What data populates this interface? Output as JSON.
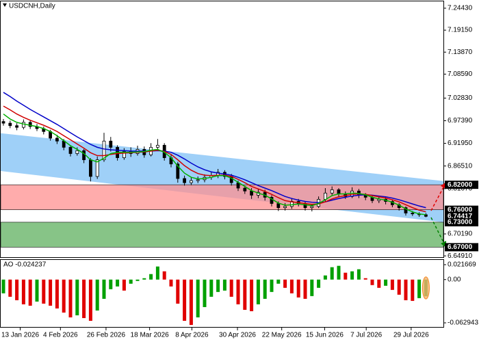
{
  "chart_data": [
    {
      "type": "candlestick",
      "title": "USDCNH,Daily",
      "ohlc": [
        [
          6.972,
          6.978,
          6.962,
          6.968
        ],
        [
          6.968,
          6.974,
          6.956,
          6.962
        ],
        [
          6.962,
          6.968,
          6.951,
          6.958
        ],
        [
          6.958,
          6.977,
          6.953,
          6.97
        ],
        [
          6.97,
          6.975,
          6.954,
          6.96
        ],
        [
          6.96,
          6.966,
          6.949,
          6.955
        ],
        [
          6.955,
          6.96,
          6.941,
          6.948
        ],
        [
          6.948,
          6.952,
          6.926,
          6.932
        ],
        [
          6.932,
          6.94,
          6.918,
          6.925
        ],
        [
          6.925,
          6.93,
          6.903,
          6.91
        ],
        [
          6.91,
          6.915,
          6.888,
          6.895
        ],
        [
          6.895,
          6.91,
          6.89,
          6.902
        ],
        [
          6.902,
          6.906,
          6.872,
          6.88
        ],
        [
          6.88,
          6.884,
          6.828,
          6.84
        ],
        [
          6.84,
          6.888,
          6.834,
          6.88
        ],
        [
          6.88,
          6.945,
          6.875,
          6.925
        ],
        [
          6.925,
          6.935,
          6.9,
          6.91
        ],
        [
          6.91,
          6.915,
          6.878,
          6.885
        ],
        [
          6.885,
          6.908,
          6.88,
          6.9
        ],
        [
          6.9,
          6.91,
          6.887,
          6.895
        ],
        [
          6.895,
          6.914,
          6.89,
          6.905
        ],
        [
          6.905,
          6.912,
          6.885,
          6.892
        ],
        [
          6.892,
          6.92,
          6.888,
          6.91
        ],
        [
          6.91,
          6.93,
          6.905,
          6.915
        ],
        [
          6.915,
          6.92,
          6.878,
          6.885
        ],
        [
          6.885,
          6.892,
          6.862,
          6.87
        ],
        [
          6.87,
          6.875,
          6.825,
          6.835
        ],
        [
          6.835,
          6.842,
          6.818,
          6.825
        ],
        [
          6.825,
          6.838,
          6.819,
          6.83
        ],
        [
          6.83,
          6.84,
          6.824,
          6.832
        ],
        [
          6.832,
          6.845,
          6.826,
          6.838
        ],
        [
          6.838,
          6.85,
          6.832,
          6.842
        ],
        [
          6.842,
          6.858,
          6.836,
          6.85
        ],
        [
          6.85,
          6.855,
          6.833,
          6.84
        ],
        [
          6.84,
          6.846,
          6.818,
          6.825
        ],
        [
          6.825,
          6.83,
          6.805,
          6.812
        ],
        [
          6.812,
          6.818,
          6.798,
          6.805
        ],
        [
          6.805,
          6.812,
          6.786,
          6.795
        ],
        [
          6.795,
          6.81,
          6.788,
          6.802
        ],
        [
          6.802,
          6.808,
          6.782,
          6.79
        ],
        [
          6.79,
          6.795,
          6.768,
          6.775
        ],
        [
          6.775,
          6.78,
          6.757,
          6.765
        ],
        [
          6.765,
          6.776,
          6.758,
          6.768
        ],
        [
          6.768,
          6.788,
          6.762,
          6.78
        ],
        [
          6.78,
          6.786,
          6.768,
          6.775
        ],
        [
          6.775,
          6.78,
          6.758,
          6.765
        ],
        [
          6.765,
          6.774,
          6.756,
          6.768
        ],
        [
          6.768,
          6.792,
          6.764,
          6.785
        ],
        [
          6.785,
          6.812,
          6.78,
          6.8
        ],
        [
          6.8,
          6.816,
          6.794,
          6.808
        ],
        [
          6.808,
          6.812,
          6.79,
          6.798
        ],
        [
          6.798,
          6.804,
          6.786,
          6.792
        ],
        [
          6.792,
          6.814,
          6.788,
          6.805
        ],
        [
          6.805,
          6.81,
          6.788,
          6.795
        ],
        [
          6.795,
          6.8,
          6.783,
          6.79
        ],
        [
          6.79,
          6.795,
          6.776,
          6.782
        ],
        [
          6.782,
          6.79,
          6.776,
          6.785
        ],
        [
          6.785,
          6.79,
          6.773,
          6.78
        ],
        [
          6.78,
          6.784,
          6.766,
          6.772
        ],
        [
          6.772,
          6.776,
          6.758,
          6.765
        ],
        [
          6.765,
          6.768,
          6.746,
          6.752
        ],
        [
          6.752,
          6.757,
          6.745,
          6.75
        ],
        [
          6.75,
          6.754,
          6.743,
          6.748
        ],
        [
          6.748,
          6.752,
          6.742,
          6.74417
        ]
      ],
      "overlays": [
        {
          "color": "#0000c8",
          "values": [
            7.042,
            7.032,
            7.021,
            7.011,
            7.001,
            6.992,
            6.983,
            6.974,
            6.965,
            6.955,
            6.945,
            6.935,
            6.926,
            6.917,
            6.91,
            6.906,
            6.904,
            6.903,
            6.902,
            6.901,
            6.901,
            6.901,
            6.901,
            6.902,
            6.901,
            6.898,
            6.891,
            6.882,
            6.872,
            6.863,
            6.856,
            6.851,
            6.848,
            6.846,
            6.843,
            6.838,
            6.832,
            6.825,
            6.818,
            6.812,
            6.806,
            6.799,
            6.792,
            6.787,
            6.783,
            6.78,
            6.778,
            6.777,
            6.779,
            6.783,
            6.787,
            6.79,
            6.793,
            6.795,
            6.796,
            6.795,
            6.793,
            6.791,
            6.788,
            6.784,
            6.779,
            6.774,
            6.769,
            6.765
          ]
        },
        {
          "color": "#d00000",
          "values": [
            7.009,
            7.0,
            6.99,
            6.982,
            6.975,
            6.969,
            6.963,
            6.956,
            6.948,
            6.938,
            6.928,
            6.918,
            6.908,
            6.897,
            6.89,
            6.89,
            6.893,
            6.895,
            6.896,
            6.897,
            6.898,
            6.899,
            6.901,
            6.903,
            6.9,
            6.893,
            6.88,
            6.866,
            6.855,
            6.847,
            6.843,
            6.842,
            6.843,
            6.843,
            6.84,
            6.833,
            6.825,
            6.816,
            6.81,
            6.804,
            6.797,
            6.789,
            6.782,
            6.779,
            6.777,
            6.775,
            6.773,
            6.774,
            6.779,
            6.786,
            6.791,
            6.794,
            6.797,
            6.798,
            6.797,
            6.794,
            6.791,
            6.788,
            6.784,
            6.779,
            6.772,
            6.765,
            6.759,
            6.755
          ]
        },
        {
          "color": "#00b000",
          "values": [
            6.99,
            6.978,
            6.97,
            6.966,
            6.963,
            6.96,
            6.955,
            6.948,
            6.938,
            6.926,
            6.914,
            6.905,
            6.895,
            6.88,
            6.875,
            6.884,
            6.895,
            6.898,
            6.898,
            6.898,
            6.899,
            6.9,
            6.903,
            6.905,
            6.898,
            6.885,
            6.865,
            6.848,
            6.838,
            6.834,
            6.835,
            6.838,
            6.842,
            6.842,
            6.836,
            6.826,
            6.816,
            6.806,
            6.8,
            6.795,
            6.786,
            6.776,
            6.771,
            6.772,
            6.774,
            6.772,
            6.77,
            6.775,
            6.784,
            6.794,
            6.798,
            6.798,
            6.8,
            6.799,
            6.796,
            6.79,
            6.786,
            6.783,
            6.778,
            6.771,
            6.762,
            6.755,
            6.75,
            6.748
          ]
        }
      ],
      "channel": {
        "upper": [
          6.944,
          6.829
        ],
        "lower": [
          6.853,
          6.73
        ],
        "color": "#9fd0f8"
      },
      "zones": [
        {
          "from": 6.82,
          "to": 6.76,
          "color": "#ff9090"
        },
        {
          "from": 6.73,
          "to": 6.67,
          "color": "#5fb05f"
        }
      ],
      "levels": [
        {
          "value": 6.82,
          "label": "6.82000"
        },
        {
          "value": 6.76,
          "label": "6.76000"
        },
        {
          "value": 6.74417,
          "label": "6.74417"
        },
        {
          "value": 6.73,
          "label": "6.73000"
        },
        {
          "value": 6.67,
          "label": "6.67000"
        }
      ],
      "ylim": [
        6.646,
        7.2607
      ],
      "yticks": [
        {
          "value": 7.2443,
          "label": "7.24430"
        },
        {
          "value": 7.1915,
          "label": "7.19150"
        },
        {
          "value": 7.1387,
          "label": "7.13870"
        },
        {
          "value": 7.0859,
          "label": "7.08590"
        },
        {
          "value": 7.0283,
          "label": "7.02830"
        },
        {
          "value": 6.9739,
          "label": "6.97390"
        },
        {
          "value": 6.9195,
          "label": "6.91950"
        },
        {
          "value": 6.8651,
          "label": "6.86510"
        },
        {
          "value": 6.8107,
          "label": "6.81070"
        },
        {
          "value": 6.7019,
          "label": "6.70190"
        },
        {
          "value": 6.6491,
          "label": "6.64910"
        }
      ],
      "xticks": [
        {
          "value": 2.5,
          "label": "13 Jan 2026"
        },
        {
          "value": 8.5,
          "label": "4 Feb 2026"
        },
        {
          "value": 15.3,
          "label": "26 Feb 2026"
        },
        {
          "value": 21.8,
          "label": "18 Mar 2026"
        },
        {
          "value": 28.1,
          "label": "8 Apr 2026"
        },
        {
          "value": 34.9,
          "label": "30 Apr 2026"
        },
        {
          "value": 41.5,
          "label": "22 May 2026"
        },
        {
          "value": 47.9,
          "label": "15 Jun 2026"
        },
        {
          "value": 54.1,
          "label": "7 Jul 2026"
        },
        {
          "value": 60.8,
          "label": "29 Jul 2026"
        }
      ]
    },
    {
      "type": "bar",
      "title": "AO -0.024237",
      "values": [
        -0.02,
        -0.025,
        -0.03,
        -0.036,
        -0.038,
        -0.032,
        -0.035,
        -0.038,
        -0.042,
        -0.048,
        -0.055,
        -0.052,
        -0.056,
        -0.06,
        -0.045,
        -0.028,
        -0.014,
        -0.01,
        -0.016,
        -0.006,
        -0.002,
        0.002,
        0.008,
        0.019,
        0.012,
        -0.01,
        -0.035,
        -0.06,
        -0.066,
        -0.055,
        -0.04,
        -0.025,
        -0.018,
        -0.016,
        -0.025,
        -0.036,
        -0.044,
        -0.046,
        -0.036,
        -0.028,
        -0.018,
        -0.006,
        -0.012,
        -0.02,
        -0.026,
        -0.028,
        -0.024,
        -0.012,
        0.006,
        0.018,
        0.02,
        0.01,
        0.012,
        0.015,
        0.002,
        -0.008,
        -0.012,
        -0.009,
        -0.015,
        -0.022,
        -0.03,
        -0.031,
        -0.027,
        -0.024237
      ],
      "colors": {
        "up": "#00a000",
        "down": "#e00000"
      },
      "ylim": [
        -0.0689,
        0.0286
      ],
      "yticks": [
        0.021669,
        {
          "value": 0,
          "label": "0.00"
        },
        -0.062943
      ]
    }
  ]
}
